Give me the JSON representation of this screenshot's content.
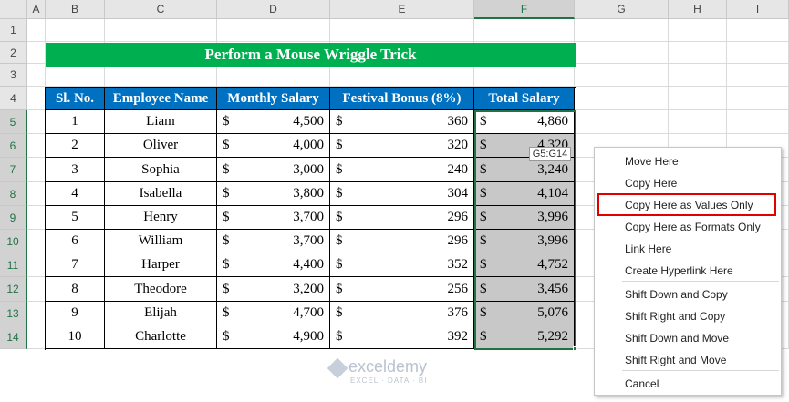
{
  "columns": [
    "A",
    "B",
    "C",
    "D",
    "E",
    "F",
    "G",
    "H",
    "I"
  ],
  "rows": [
    "1",
    "2",
    "3",
    "4",
    "5",
    "6",
    "7",
    "8",
    "9",
    "10",
    "11",
    "12",
    "13",
    "14"
  ],
  "title": "Perform a Mouse Wriggle Trick",
  "table": {
    "headers": [
      "Sl. No.",
      "Employee Name",
      "Monthly Salary",
      "Festival Bonus (8%)",
      "Total Salary"
    ],
    "currency": "$",
    "rows": [
      [
        "1",
        "Liam",
        "4,500",
        "360",
        "4,860"
      ],
      [
        "2",
        "Oliver",
        "4,000",
        "320",
        "4,320"
      ],
      [
        "3",
        "Sophia",
        "3,000",
        "240",
        "3,240"
      ],
      [
        "4",
        "Isabella",
        "3,800",
        "304",
        "4,104"
      ],
      [
        "5",
        "Henry",
        "3,700",
        "296",
        "3,996"
      ],
      [
        "6",
        "William",
        "3,700",
        "296",
        "3,996"
      ],
      [
        "7",
        "Harper",
        "4,400",
        "352",
        "4,752"
      ],
      [
        "8",
        "Theodore",
        "3,200",
        "256",
        "3,456"
      ],
      [
        "9",
        "Elijah",
        "4,700",
        "376",
        "5,076"
      ],
      [
        "10",
        "Charlotte",
        "4,900",
        "392",
        "5,292"
      ]
    ]
  },
  "tooltip": "G5:G14",
  "context_menu": {
    "items": [
      "Move Here",
      "Copy Here",
      "Copy Here as Values Only",
      "Copy Here as Formats Only",
      "Link Here",
      "Create Hyperlink Here",
      "Shift Down and Copy",
      "Shift Right and Copy",
      "Shift Down and Move",
      "Shift Right and Move",
      "Cancel"
    ]
  },
  "watermark": {
    "name": "exceldemy",
    "tagline": "EXCEL · DATA · BI"
  }
}
